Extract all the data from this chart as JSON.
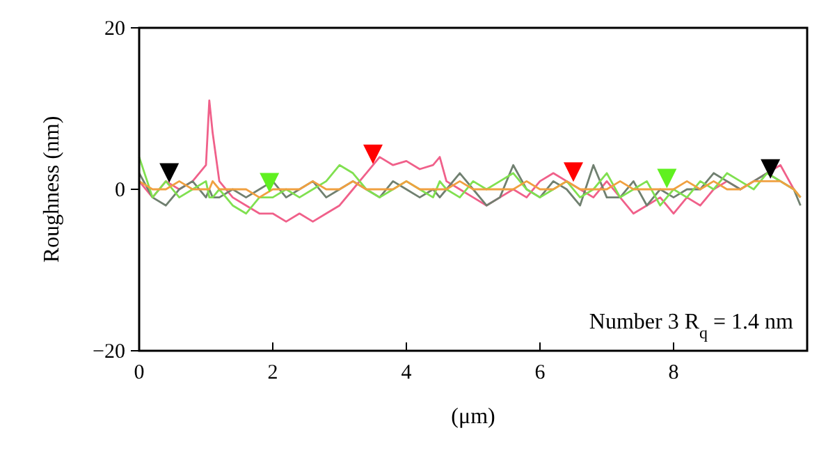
{
  "chart_data": {
    "type": "line",
    "xlabel": "(μm)",
    "ylabel": "Roughness (nm)",
    "xlim": [
      0,
      10
    ],
    "ylim": [
      -20,
      20
    ],
    "xticks": [
      0,
      2,
      4,
      6,
      8
    ],
    "yticks": [
      -20,
      0,
      20
    ],
    "annotations": [
      "Number 3 R$_{q}$ = 1.4 nm"
    ],
    "x": [
      0,
      0.2,
      0.4,
      0.6,
      0.8,
      1.0,
      1.05,
      1.1,
      1.2,
      1.4,
      1.6,
      1.8,
      2.0,
      2.2,
      2.4,
      2.6,
      2.8,
      3.0,
      3.2,
      3.4,
      3.6,
      3.8,
      4.0,
      4.2,
      4.4,
      4.5,
      4.6,
      4.8,
      5.0,
      5.2,
      5.4,
      5.6,
      5.8,
      6.0,
      6.2,
      6.4,
      6.6,
      6.8,
      7.0,
      7.2,
      7.4,
      7.6,
      7.8,
      8.0,
      8.2,
      8.4,
      8.6,
      8.8,
      9.0,
      9.2,
      9.4,
      9.6,
      9.8,
      9.9
    ],
    "series": [
      {
        "color": "#f0608a",
        "values": [
          1,
          -1,
          1,
          0,
          1,
          3,
          11,
          7,
          1,
          -1,
          -2,
          -3,
          -3,
          -4,
          -3,
          -4,
          -3,
          -2,
          0,
          2,
          4,
          3,
          3.5,
          2.5,
          3,
          4,
          1,
          0,
          -1,
          -2,
          -1,
          0,
          -1,
          1,
          2,
          1,
          0,
          -1,
          1,
          -1,
          -3,
          -2,
          -1,
          -3,
          -1,
          -2,
          0,
          1,
          0,
          1,
          2,
          3,
          0,
          -1
        ]
      },
      {
        "color": "#708070",
        "values": [
          2,
          -1,
          -2,
          0,
          1,
          -1,
          0,
          -1,
          -1,
          0,
          -1,
          0,
          1,
          -1,
          0,
          1,
          -1,
          0,
          1,
          0,
          -1,
          1,
          0,
          -1,
          0,
          -1,
          0,
          2,
          0,
          -2,
          -1,
          3,
          0,
          -1,
          1,
          0,
          -2,
          3,
          -1,
          -1,
          1,
          -2,
          0,
          -1,
          0,
          0,
          2,
          1,
          0,
          1,
          2,
          1,
          0,
          -2
        ]
      },
      {
        "color": "#80e050",
        "values": [
          4,
          -1,
          1,
          -1,
          0,
          1,
          -1,
          -1,
          0,
          -2,
          -3,
          -1,
          -1,
          0,
          -1,
          0,
          1,
          3,
          2,
          0,
          -1,
          0,
          1,
          0,
          -1,
          1,
          0,
          -1,
          1,
          0,
          1,
          2,
          0,
          -1,
          0,
          1,
          -1,
          0,
          2,
          -1,
          0,
          1,
          -2,
          0,
          -1,
          1,
          0,
          2,
          1,
          0,
          2,
          1,
          0,
          -1
        ]
      },
      {
        "color": "#f0a040",
        "values": [
          1,
          0,
          0,
          1,
          0,
          0,
          0,
          1,
          0,
          0,
          0,
          -1,
          0,
          0,
          0,
          1,
          0,
          0,
          1,
          0,
          0,
          0,
          1,
          0,
          0,
          0,
          0,
          1,
          0,
          0,
          0,
          0,
          1,
          0,
          0,
          1,
          0,
          0,
          0,
          1,
          0,
          0,
          0,
          0,
          1,
          0,
          1,
          0,
          0,
          1,
          1,
          1,
          0,
          -1
        ]
      },
      {
        "type": "scatter",
        "marker": "triangle",
        "color": "#000000",
        "x": [
          0.45,
          9.45
        ],
        "values": [
          2.2,
          2.7
        ]
      },
      {
        "type": "scatter",
        "marker": "triangle",
        "color": "#60f020",
        "x": [
          1.95,
          7.9
        ],
        "values": [
          1,
          1.5
        ]
      },
      {
        "type": "scatter",
        "marker": "triangle",
        "color": "#ff0000",
        "x": [
          3.5,
          6.5
        ],
        "values": [
          4.5,
          2.3
        ]
      }
    ]
  }
}
